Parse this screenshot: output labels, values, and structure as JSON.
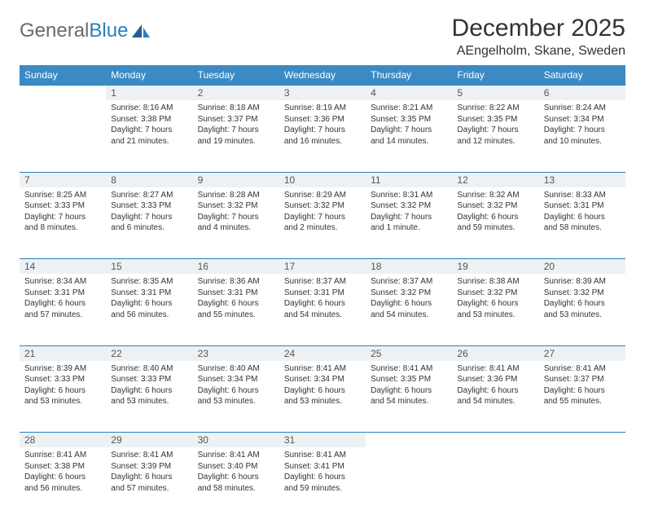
{
  "logo": {
    "text1": "General",
    "text2": "Blue"
  },
  "title": "December 2025",
  "location": "AEngelholm, Skane, Sweden",
  "colors": {
    "header_bg": "#3b8ac4",
    "header_text": "#ffffff",
    "daynum_bg": "#eef1f3",
    "border": "#2a7fbf",
    "logo_gray": "#6b6b6b",
    "logo_blue": "#2a7fbf"
  },
  "weekdays": [
    "Sunday",
    "Monday",
    "Tuesday",
    "Wednesday",
    "Thursday",
    "Friday",
    "Saturday"
  ],
  "weeks": [
    [
      {
        "num": "",
        "lines": []
      },
      {
        "num": "1",
        "lines": [
          "Sunrise: 8:16 AM",
          "Sunset: 3:38 PM",
          "Daylight: 7 hours",
          "and 21 minutes."
        ]
      },
      {
        "num": "2",
        "lines": [
          "Sunrise: 8:18 AM",
          "Sunset: 3:37 PM",
          "Daylight: 7 hours",
          "and 19 minutes."
        ]
      },
      {
        "num": "3",
        "lines": [
          "Sunrise: 8:19 AM",
          "Sunset: 3:36 PM",
          "Daylight: 7 hours",
          "and 16 minutes."
        ]
      },
      {
        "num": "4",
        "lines": [
          "Sunrise: 8:21 AM",
          "Sunset: 3:35 PM",
          "Daylight: 7 hours",
          "and 14 minutes."
        ]
      },
      {
        "num": "5",
        "lines": [
          "Sunrise: 8:22 AM",
          "Sunset: 3:35 PM",
          "Daylight: 7 hours",
          "and 12 minutes."
        ]
      },
      {
        "num": "6",
        "lines": [
          "Sunrise: 8:24 AM",
          "Sunset: 3:34 PM",
          "Daylight: 7 hours",
          "and 10 minutes."
        ]
      }
    ],
    [
      {
        "num": "7",
        "lines": [
          "Sunrise: 8:25 AM",
          "Sunset: 3:33 PM",
          "Daylight: 7 hours",
          "and 8 minutes."
        ]
      },
      {
        "num": "8",
        "lines": [
          "Sunrise: 8:27 AM",
          "Sunset: 3:33 PM",
          "Daylight: 7 hours",
          "and 6 minutes."
        ]
      },
      {
        "num": "9",
        "lines": [
          "Sunrise: 8:28 AM",
          "Sunset: 3:32 PM",
          "Daylight: 7 hours",
          "and 4 minutes."
        ]
      },
      {
        "num": "10",
        "lines": [
          "Sunrise: 8:29 AM",
          "Sunset: 3:32 PM",
          "Daylight: 7 hours",
          "and 2 minutes."
        ]
      },
      {
        "num": "11",
        "lines": [
          "Sunrise: 8:31 AM",
          "Sunset: 3:32 PM",
          "Daylight: 7 hours",
          "and 1 minute."
        ]
      },
      {
        "num": "12",
        "lines": [
          "Sunrise: 8:32 AM",
          "Sunset: 3:32 PM",
          "Daylight: 6 hours",
          "and 59 minutes."
        ]
      },
      {
        "num": "13",
        "lines": [
          "Sunrise: 8:33 AM",
          "Sunset: 3:31 PM",
          "Daylight: 6 hours",
          "and 58 minutes."
        ]
      }
    ],
    [
      {
        "num": "14",
        "lines": [
          "Sunrise: 8:34 AM",
          "Sunset: 3:31 PM",
          "Daylight: 6 hours",
          "and 57 minutes."
        ]
      },
      {
        "num": "15",
        "lines": [
          "Sunrise: 8:35 AM",
          "Sunset: 3:31 PM",
          "Daylight: 6 hours",
          "and 56 minutes."
        ]
      },
      {
        "num": "16",
        "lines": [
          "Sunrise: 8:36 AM",
          "Sunset: 3:31 PM",
          "Daylight: 6 hours",
          "and 55 minutes."
        ]
      },
      {
        "num": "17",
        "lines": [
          "Sunrise: 8:37 AM",
          "Sunset: 3:31 PM",
          "Daylight: 6 hours",
          "and 54 minutes."
        ]
      },
      {
        "num": "18",
        "lines": [
          "Sunrise: 8:37 AM",
          "Sunset: 3:32 PM",
          "Daylight: 6 hours",
          "and 54 minutes."
        ]
      },
      {
        "num": "19",
        "lines": [
          "Sunrise: 8:38 AM",
          "Sunset: 3:32 PM",
          "Daylight: 6 hours",
          "and 53 minutes."
        ]
      },
      {
        "num": "20",
        "lines": [
          "Sunrise: 8:39 AM",
          "Sunset: 3:32 PM",
          "Daylight: 6 hours",
          "and 53 minutes."
        ]
      }
    ],
    [
      {
        "num": "21",
        "lines": [
          "Sunrise: 8:39 AM",
          "Sunset: 3:33 PM",
          "Daylight: 6 hours",
          "and 53 minutes."
        ]
      },
      {
        "num": "22",
        "lines": [
          "Sunrise: 8:40 AM",
          "Sunset: 3:33 PM",
          "Daylight: 6 hours",
          "and 53 minutes."
        ]
      },
      {
        "num": "23",
        "lines": [
          "Sunrise: 8:40 AM",
          "Sunset: 3:34 PM",
          "Daylight: 6 hours",
          "and 53 minutes."
        ]
      },
      {
        "num": "24",
        "lines": [
          "Sunrise: 8:41 AM",
          "Sunset: 3:34 PM",
          "Daylight: 6 hours",
          "and 53 minutes."
        ]
      },
      {
        "num": "25",
        "lines": [
          "Sunrise: 8:41 AM",
          "Sunset: 3:35 PM",
          "Daylight: 6 hours",
          "and 54 minutes."
        ]
      },
      {
        "num": "26",
        "lines": [
          "Sunrise: 8:41 AM",
          "Sunset: 3:36 PM",
          "Daylight: 6 hours",
          "and 54 minutes."
        ]
      },
      {
        "num": "27",
        "lines": [
          "Sunrise: 8:41 AM",
          "Sunset: 3:37 PM",
          "Daylight: 6 hours",
          "and 55 minutes."
        ]
      }
    ],
    [
      {
        "num": "28",
        "lines": [
          "Sunrise: 8:41 AM",
          "Sunset: 3:38 PM",
          "Daylight: 6 hours",
          "and 56 minutes."
        ]
      },
      {
        "num": "29",
        "lines": [
          "Sunrise: 8:41 AM",
          "Sunset: 3:39 PM",
          "Daylight: 6 hours",
          "and 57 minutes."
        ]
      },
      {
        "num": "30",
        "lines": [
          "Sunrise: 8:41 AM",
          "Sunset: 3:40 PM",
          "Daylight: 6 hours",
          "and 58 minutes."
        ]
      },
      {
        "num": "31",
        "lines": [
          "Sunrise: 8:41 AM",
          "Sunset: 3:41 PM",
          "Daylight: 6 hours",
          "and 59 minutes."
        ]
      },
      {
        "num": "",
        "lines": []
      },
      {
        "num": "",
        "lines": []
      },
      {
        "num": "",
        "lines": []
      }
    ]
  ]
}
